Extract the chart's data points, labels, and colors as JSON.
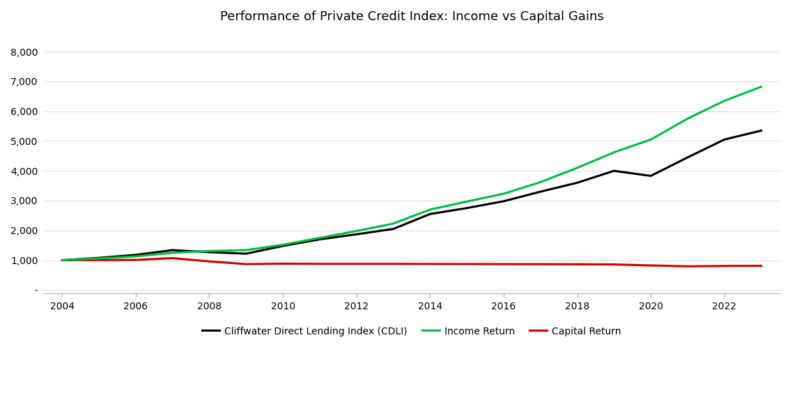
{
  "title": "Performance of Private Credit Index: Income vs Capital Gains",
  "years": [
    2004,
    2005,
    2006,
    2007,
    2008,
    2009,
    2010,
    2011,
    2012,
    2013,
    2014,
    2015,
    2016,
    2017,
    2018,
    2019,
    2020,
    2021,
    2022,
    2023
  ],
  "cdli": [
    1000,
    1080,
    1180,
    1340,
    1270,
    1220,
    1480,
    1700,
    1870,
    2050,
    2550,
    2750,
    2980,
    3300,
    3600,
    4000,
    3830,
    4450,
    5050,
    5350
  ],
  "income": [
    1000,
    1060,
    1130,
    1250,
    1310,
    1340,
    1520,
    1750,
    1980,
    2230,
    2700,
    2970,
    3230,
    3620,
    4100,
    4620,
    5050,
    5750,
    6350,
    6820
  ],
  "capital": [
    1000,
    1005,
    1010,
    1070,
    960,
    870,
    885,
    878,
    878,
    878,
    875,
    872,
    870,
    868,
    865,
    858,
    825,
    795,
    808,
    812
  ],
  "cdli_color": "#000000",
  "income_color": "#00bb44",
  "capital_color": "#cc0000",
  "cdli_label": "Cliffwater Direct Lending Index (CDLI)",
  "income_label": "Income Return",
  "capital_label": "Capital Return",
  "ylim": [
    -100,
    8600
  ],
  "yticks": [
    0,
    1000,
    2000,
    3000,
    4000,
    5000,
    6000,
    7000,
    8000
  ],
  "ytick_labels": [
    "-",
    "1,000",
    "2,000",
    "3,000",
    "4,000",
    "5,000",
    "6,000",
    "7,000",
    "8,000"
  ],
  "xticks": [
    2004,
    2006,
    2008,
    2010,
    2012,
    2014,
    2016,
    2018,
    2020,
    2022
  ],
  "background_color": "#ffffff",
  "line_width": 2.2
}
